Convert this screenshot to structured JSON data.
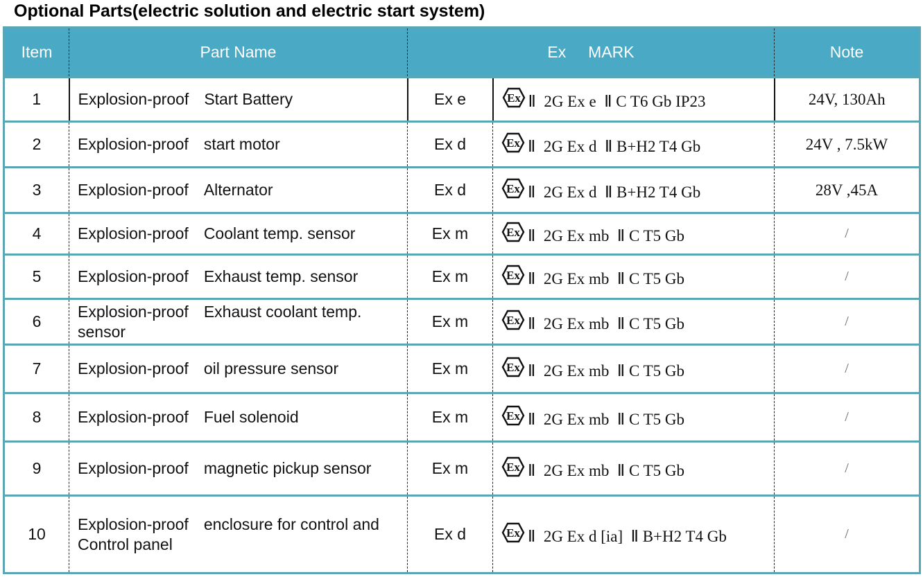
{
  "title": "Optional Parts(electric solution and electric start system)",
  "colors": {
    "header_bg": "#4aa9c4",
    "border": "#5ba6b4",
    "header_text": "#ffffff"
  },
  "table": {
    "headers": {
      "item": "Item",
      "part_name": "Part Name",
      "ex_mark": "Ex     MARK",
      "note": "Note"
    },
    "ex_logo_icon": "atex-ex-hexagon-icon",
    "rows": [
      {
        "item": "1",
        "name_prefix": "Explosion-proof",
        "name_rest": "Start Battery",
        "ex": "Ex e",
        "mark": "Ⅱ  2G Ex e  Ⅱ C T6 Gb IP23",
        "note": "24V, 130Ah"
      },
      {
        "item": "2",
        "name_prefix": "Explosion-proof",
        "name_rest": "start motor",
        "ex": "Ex d",
        "mark": "Ⅱ  2G Ex d  Ⅱ B+H2 T4 Gb",
        "note": "24V , 7.5kW"
      },
      {
        "item": "3",
        "name_prefix": "Explosion-proof",
        "name_rest": "Alternator",
        "ex": "Ex d",
        "mark": "Ⅱ  2G Ex d  Ⅱ B+H2 T4 Gb",
        "note": "28V ,45A"
      },
      {
        "item": "4",
        "name_prefix": "Explosion-proof",
        "name_rest": "Coolant temp. sensor",
        "ex": "Ex m",
        "mark": "Ⅱ  2G Ex mb  Ⅱ C T5 Gb",
        "note": "/"
      },
      {
        "item": "5",
        "name_prefix": "Explosion-proof",
        "name_rest": "Exhaust temp. sensor",
        "ex": "Ex m",
        "mark": "Ⅱ  2G Ex mb  Ⅱ C T5 Gb",
        "note": "/"
      },
      {
        "item": "6",
        "name_prefix": "Explosion-proof",
        "name_rest": "Exhaust coolant temp. sensor",
        "ex": "Ex m",
        "mark": "Ⅱ  2G Ex mb  Ⅱ C T5 Gb",
        "note": "/"
      },
      {
        "item": "7",
        "name_prefix": "Explosion-proof",
        "name_rest": "oil pressure sensor",
        "ex": "Ex m",
        "mark": "Ⅱ  2G Ex mb  Ⅱ C T5 Gb",
        "note": "/"
      },
      {
        "item": "8",
        "name_prefix": "Explosion-proof",
        "name_rest": "Fuel solenoid",
        "ex": "Ex m",
        "mark": "Ⅱ  2G Ex mb  Ⅱ C T5 Gb",
        "note": "/"
      },
      {
        "item": "9",
        "name_prefix": "Explosion-proof",
        "name_rest": "magnetic pickup sensor",
        "ex": "Ex m",
        "mark": "Ⅱ  2G Ex mb  Ⅱ C T5 Gb",
        "note": "/"
      },
      {
        "item": "10",
        "name_prefix": "Explosion-proof",
        "name_rest": "enclosure for control and Control panel",
        "ex": "Ex d",
        "mark": "Ⅱ  2G Ex d [ia]  Ⅱ B+H2 T4 Gb",
        "note": "/"
      }
    ]
  }
}
